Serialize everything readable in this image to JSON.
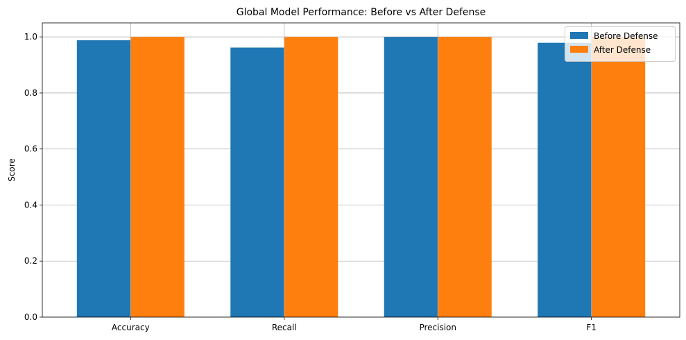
{
  "chart_data": {
    "type": "bar",
    "title": "Global Model Performance: Before vs After Defense",
    "xlabel": "",
    "ylabel": "Score",
    "categories": [
      "Accuracy",
      "Recall",
      "Precision",
      "F1"
    ],
    "series": [
      {
        "name": "Before Defense",
        "values": [
          0.988,
          0.962,
          1.0,
          0.979
        ],
        "color": "#1f77b4"
      },
      {
        "name": "After Defense",
        "values": [
          1.0,
          1.0,
          1.0,
          1.0
        ],
        "color": "#ff7f0e"
      }
    ],
    "ylim": [
      0,
      1.05
    ],
    "yticks": [
      "0.0",
      "0.2",
      "0.4",
      "0.6",
      "0.8",
      "1.0"
    ],
    "grid": true,
    "legend_position": "top-right"
  }
}
